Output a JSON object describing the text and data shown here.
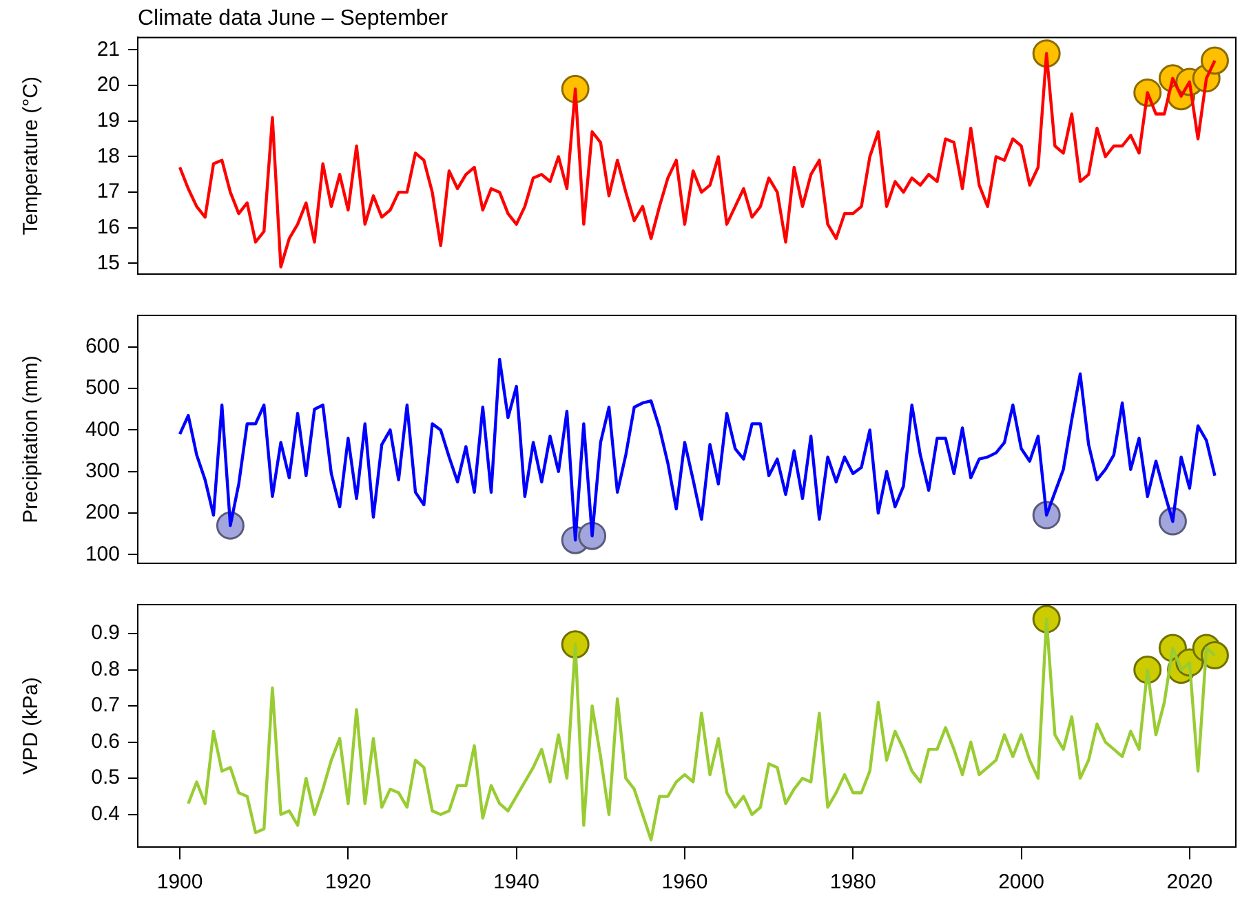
{
  "chart_data": [
    {
      "type": "line",
      "title": "Climate data June – September",
      "ylabel": "Temperature (°C)",
      "xlim": [
        1895,
        2025.5
      ],
      "ylim": [
        14.7,
        21.35
      ],
      "yticks": [
        15,
        16,
        17,
        18,
        19,
        20,
        21
      ],
      "tick_labels": "y",
      "grid": false,
      "legend": false,
      "x": [
        1900,
        1901,
        1902,
        1903,
        1904,
        1905,
        1906,
        1907,
        1908,
        1909,
        1910,
        1911,
        1912,
        1913,
        1914,
        1915,
        1916,
        1917,
        1918,
        1919,
        1920,
        1921,
        1922,
        1923,
        1924,
        1925,
        1926,
        1927,
        1928,
        1929,
        1930,
        1931,
        1932,
        1933,
        1934,
        1935,
        1936,
        1937,
        1938,
        1939,
        1940,
        1941,
        1942,
        1943,
        1944,
        1945,
        1946,
        1947,
        1948,
        1949,
        1950,
        1951,
        1952,
        1953,
        1954,
        1955,
        1956,
        1957,
        1958,
        1959,
        1960,
        1961,
        1962,
        1963,
        1964,
        1965,
        1966,
        1967,
        1968,
        1969,
        1970,
        1971,
        1972,
        1973,
        1974,
        1975,
        1976,
        1977,
        1978,
        1979,
        1980,
        1981,
        1982,
        1983,
        1984,
        1985,
        1986,
        1987,
        1988,
        1989,
        1990,
        1991,
        1992,
        1993,
        1994,
        1995,
        1996,
        1997,
        1998,
        1999,
        2000,
        2001,
        2002,
        2003,
        2004,
        2005,
        2006,
        2007,
        2008,
        2009,
        2010,
        2011,
        2012,
        2013,
        2014,
        2015,
        2016,
        2017,
        2018,
        2019,
        2020,
        2021,
        2022,
        2023
      ],
      "series": [
        {
          "color": "#ff0000",
          "values": [
            17.7,
            17.1,
            16.6,
            16.3,
            17.8,
            17.9,
            17.0,
            16.4,
            16.7,
            15.6,
            15.9,
            19.1,
            14.9,
            15.7,
            16.1,
            16.7,
            15.6,
            17.8,
            16.6,
            17.5,
            16.5,
            18.3,
            16.1,
            16.9,
            16.3,
            16.5,
            17.0,
            17.0,
            18.1,
            17.9,
            17.0,
            15.5,
            17.6,
            17.1,
            17.5,
            17.7,
            16.5,
            17.1,
            17.0,
            16.4,
            16.1,
            16.6,
            17.4,
            17.5,
            17.3,
            18.0,
            17.1,
            19.9,
            16.1,
            18.7,
            18.4,
            16.9,
            17.9,
            17.0,
            16.2,
            16.6,
            15.7,
            16.6,
            17.4,
            17.9,
            16.1,
            17.6,
            17.0,
            17.2,
            18.0,
            16.1,
            16.6,
            17.1,
            16.3,
            16.6,
            17.4,
            17.0,
            15.6,
            17.7,
            16.6,
            17.5,
            17.9,
            16.1,
            15.7,
            16.4,
            16.4,
            16.6,
            18.0,
            18.7,
            16.6,
            17.3,
            17.0,
            17.4,
            17.2,
            17.5,
            17.3,
            18.5,
            18.4,
            17.1,
            18.8,
            17.2,
            16.6,
            18.0,
            17.9,
            18.5,
            18.3,
            17.2,
            17.7,
            20.9,
            18.3,
            18.1,
            19.2,
            17.3,
            17.5,
            18.8,
            18.0,
            18.3,
            18.3,
            18.6,
            18.1,
            19.8,
            19.2,
            19.2,
            20.2,
            19.7,
            20.1,
            18.5,
            20.2,
            20.7
          ]
        },
        {
          "type": "scatter",
          "color": "#ffc000",
          "marker": "circle",
          "x": [
            1947,
            2003,
            2015,
            2018,
            2019,
            2020,
            2022,
            2023
          ],
          "values": [
            19.9,
            20.9,
            19.8,
            20.2,
            19.7,
            20.1,
            20.2,
            20.7
          ]
        }
      ]
    },
    {
      "type": "line",
      "ylabel": "Precipitation (mm)",
      "xlim": [
        1895,
        2025.5
      ],
      "ylim": [
        79,
        676
      ],
      "yticks": [
        100,
        200,
        300,
        400,
        500,
        600
      ],
      "tick_labels": "y",
      "grid": false,
      "legend": false,
      "x": [
        1900,
        1901,
        1902,
        1903,
        1904,
        1905,
        1906,
        1907,
        1908,
        1909,
        1910,
        1911,
        1912,
        1913,
        1914,
        1915,
        1916,
        1917,
        1918,
        1919,
        1920,
        1921,
        1922,
        1923,
        1924,
        1925,
        1926,
        1927,
        1928,
        1929,
        1930,
        1931,
        1932,
        1933,
        1934,
        1935,
        1936,
        1937,
        1938,
        1939,
        1940,
        1941,
        1942,
        1943,
        1944,
        1945,
        1946,
        1947,
        1948,
        1949,
        1950,
        1951,
        1952,
        1953,
        1954,
        1955,
        1956,
        1957,
        1958,
        1959,
        1960,
        1961,
        1962,
        1963,
        1964,
        1965,
        1966,
        1967,
        1968,
        1969,
        1970,
        1971,
        1972,
        1973,
        1974,
        1975,
        1976,
        1977,
        1978,
        1979,
        1980,
        1981,
        1982,
        1983,
        1984,
        1985,
        1986,
        1987,
        1988,
        1989,
        1990,
        1991,
        1992,
        1993,
        1994,
        1995,
        1996,
        1997,
        1998,
        1999,
        2000,
        2001,
        2002,
        2003,
        2004,
        2005,
        2006,
        2007,
        2008,
        2009,
        2010,
        2011,
        2012,
        2013,
        2014,
        2015,
        2016,
        2017,
        2018,
        2019,
        2020,
        2021,
        2022,
        2023
      ],
      "series": [
        {
          "color": "#0000ff",
          "values": [
            390,
            435,
            340,
            280,
            195,
            460,
            170,
            270,
            415,
            415,
            460,
            240,
            370,
            285,
            440,
            290,
            450,
            460,
            295,
            215,
            380,
            235,
            415,
            190,
            365,
            400,
            280,
            460,
            250,
            220,
            415,
            400,
            335,
            275,
            360,
            250,
            455,
            250,
            570,
            430,
            505,
            240,
            370,
            275,
            385,
            300,
            445,
            135,
            415,
            145,
            370,
            455,
            250,
            340,
            455,
            465,
            470,
            405,
            320,
            210,
            370,
            280,
            185,
            365,
            270,
            440,
            355,
            330,
            415,
            415,
            290,
            330,
            245,
            350,
            235,
            385,
            185,
            335,
            275,
            335,
            295,
            310,
            400,
            200,
            300,
            215,
            265,
            460,
            340,
            255,
            380,
            380,
            295,
            405,
            285,
            330,
            335,
            345,
            370,
            460,
            355,
            325,
            385,
            195,
            250,
            305,
            425,
            535,
            365,
            280,
            305,
            340,
            465,
            305,
            380,
            240,
            325,
            250,
            180,
            335,
            260,
            410,
            375,
            290
          ]
        },
        {
          "type": "scatter",
          "color": "#a3a6dd",
          "marker": "circle",
          "x": [
            1906,
            1947,
            1949,
            2003,
            2018
          ],
          "values": [
            170,
            135,
            145,
            195,
            180
          ]
        }
      ]
    },
    {
      "type": "line",
      "ylabel": "VPD (kPa)",
      "xlim": [
        1895,
        2025.5
      ],
      "ylim": [
        0.31,
        0.98
      ],
      "xticks": [
        1900,
        1920,
        1940,
        1960,
        1980,
        2000,
        2020
      ],
      "yticks": [
        0.4,
        0.5,
        0.6,
        0.7,
        0.8,
        0.9
      ],
      "grid": false,
      "legend": false,
      "x": [
        1901,
        1902,
        1903,
        1904,
        1905,
        1906,
        1907,
        1908,
        1909,
        1910,
        1911,
        1912,
        1913,
        1914,
        1915,
        1916,
        1917,
        1918,
        1919,
        1920,
        1921,
        1922,
        1923,
        1924,
        1925,
        1926,
        1927,
        1928,
        1929,
        1930,
        1931,
        1932,
        1933,
        1934,
        1935,
        1936,
        1937,
        1938,
        1939,
        1940,
        1941,
        1942,
        1943,
        1944,
        1945,
        1946,
        1947,
        1948,
        1949,
        1950,
        1951,
        1952,
        1953,
        1954,
        1955,
        1956,
        1957,
        1958,
        1959,
        1960,
        1961,
        1962,
        1963,
        1964,
        1965,
        1966,
        1967,
        1968,
        1969,
        1970,
        1971,
        1972,
        1973,
        1974,
        1975,
        1976,
        1977,
        1978,
        1979,
        1980,
        1981,
        1982,
        1983,
        1984,
        1985,
        1986,
        1987,
        1988,
        1989,
        1990,
        1991,
        1992,
        1993,
        1994,
        1995,
        1996,
        1997,
        1998,
        1999,
        2000,
        2001,
        2002,
        2003,
        2004,
        2005,
        2006,
        2007,
        2008,
        2009,
        2010,
        2011,
        2012,
        2013,
        2014,
        2015,
        2016,
        2017,
        2018,
        2019,
        2020,
        2021,
        2022,
        2023
      ],
      "series": [
        {
          "color": "#99cc33",
          "values": [
            0.43,
            0.49,
            0.43,
            0.63,
            0.52,
            0.53,
            0.46,
            0.45,
            0.35,
            0.36,
            0.75,
            0.4,
            0.41,
            0.37,
            0.5,
            0.4,
            0.47,
            0.55,
            0.61,
            0.43,
            0.69,
            0.43,
            0.61,
            0.42,
            0.47,
            0.46,
            0.42,
            0.55,
            0.53,
            0.41,
            0.4,
            0.41,
            0.48,
            0.48,
            0.59,
            0.39,
            0.48,
            0.43,
            0.41,
            0.45,
            0.49,
            0.53,
            0.58,
            0.49,
            0.62,
            0.5,
            0.87,
            0.37,
            0.7,
            0.56,
            0.4,
            0.72,
            0.5,
            0.47,
            0.4,
            0.33,
            0.45,
            0.45,
            0.49,
            0.51,
            0.49,
            0.68,
            0.51,
            0.61,
            0.46,
            0.42,
            0.45,
            0.4,
            0.42,
            0.54,
            0.53,
            0.43,
            0.47,
            0.5,
            0.49,
            0.68,
            0.42,
            0.46,
            0.51,
            0.46,
            0.46,
            0.52,
            0.71,
            0.55,
            0.63,
            0.58,
            0.52,
            0.49,
            0.58,
            0.58,
            0.64,
            0.58,
            0.51,
            0.6,
            0.51,
            0.53,
            0.55,
            0.62,
            0.56,
            0.62,
            0.55,
            0.5,
            0.94,
            0.62,
            0.58,
            0.67,
            0.5,
            0.55,
            0.65,
            0.6,
            0.58,
            0.56,
            0.63,
            0.58,
            0.8,
            0.62,
            0.71,
            0.86,
            0.8,
            0.82,
            0.52,
            0.86,
            0.84
          ]
        },
        {
          "type": "scatter",
          "color": "#cccc00",
          "marker": "circle",
          "x": [
            1947,
            2003,
            2015,
            2018,
            2019,
            2020,
            2022,
            2023
          ],
          "values": [
            0.87,
            0.94,
            0.8,
            0.86,
            0.8,
            0.82,
            0.86,
            0.84
          ]
        }
      ]
    }
  ]
}
